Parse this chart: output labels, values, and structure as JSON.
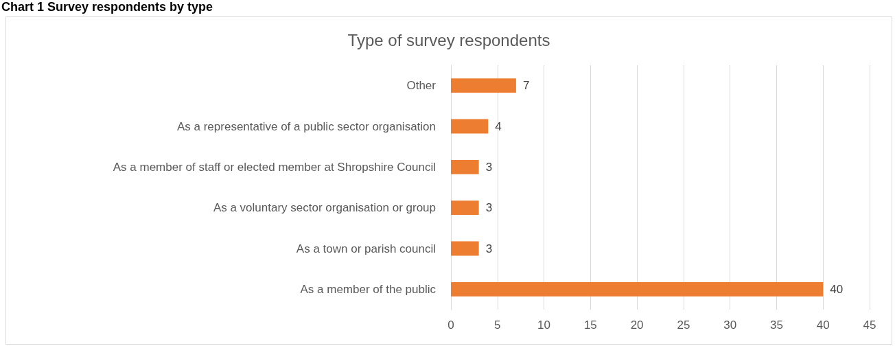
{
  "chart_data": {
    "type": "bar",
    "orientation": "horizontal",
    "title": "Chart 1 Survey respondents by type",
    "subtitle": "Type of survey respondents",
    "categories": [
      "Other",
      "As a representative of a public sector organisation",
      "As a member of staff or elected member at Shropshire Council",
      "As a voluntary sector organisation or group",
      "As a town or parish council",
      "As a member of the public"
    ],
    "values": [
      7,
      4,
      3,
      3,
      3,
      40
    ],
    "color": "#ed7d31",
    "xlim": [
      0,
      45
    ],
    "xticks": [
      0,
      5,
      10,
      15,
      20,
      25,
      30,
      35,
      40,
      45
    ],
    "grid": "x",
    "data_labels": true
  }
}
